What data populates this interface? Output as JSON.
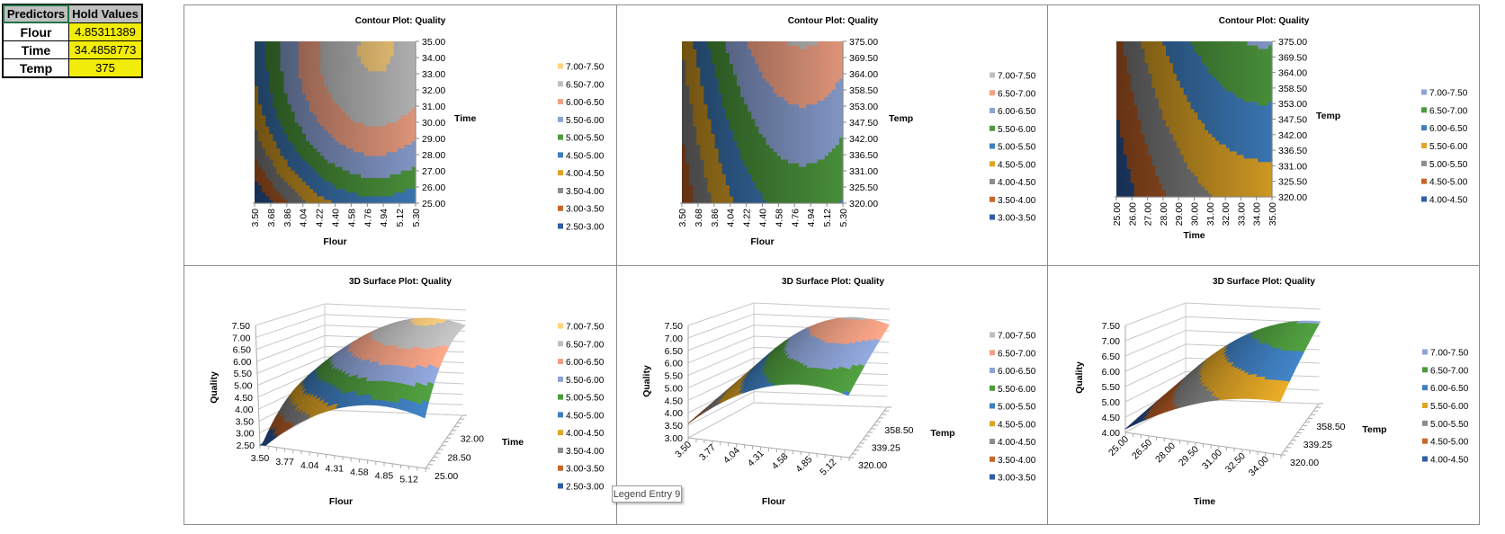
{
  "table": {
    "headers": [
      "Predictors",
      "Hold Values"
    ],
    "rows": [
      {
        "name": "Flour",
        "value": "4.85311389"
      },
      {
        "name": "Time",
        "value": "34.4858773"
      },
      {
        "name": "Temp",
        "value": "375"
      }
    ]
  },
  "tooltip": "Legend Entry 9",
  "colors": {
    "bands": [
      "#2E5EA8",
      "#C8662A",
      "#8C8C8C",
      "#E0A526",
      "#3F7FC0",
      "#4E9A3E",
      "#8DA3D6",
      "#F2A184",
      "#BFBFBF",
      "#FFD27F"
    ],
    "panel_border": "#8C8C8C",
    "hold_value_fill": "#F2EC0A",
    "header_fill": "#C0C0C0"
  },
  "chart_data": [
    {
      "type": "contour",
      "title": "Contour Plot: Quality",
      "xlabel": "Flour",
      "ylabel": "Time",
      "xlim": [
        3.5,
        5.3
      ],
      "ylim": [
        25,
        35
      ],
      "zlim": [
        2.5,
        7.5
      ],
      "held": {
        "Temp": 375
      },
      "x_ticks": [
        "3.50",
        "3.68",
        "3.86",
        "4.04",
        "4.22",
        "4.40",
        "4.58",
        "4.76",
        "4.94",
        "5.12",
        "5.30"
      ],
      "y_ticks": [
        "25.00",
        "26.00",
        "27.00",
        "28.00",
        "29.00",
        "30.00",
        "31.00",
        "32.00",
        "33.00",
        "34.00",
        "35.00"
      ],
      "legend": [
        "7.00-7.50",
        "6.50-7.00",
        "6.00-6.50",
        "5.50-6.00",
        "5.00-5.50",
        "4.50-5.00",
        "4.00-4.50",
        "3.50-4.00",
        "3.00-3.50",
        "2.50-3.00"
      ],
      "legend_position": "right"
    },
    {
      "type": "contour",
      "title": "Contour Plot: Quality",
      "xlabel": "Flour",
      "ylabel": "Temp",
      "xlim": [
        3.5,
        5.3
      ],
      "ylim": [
        320,
        375
      ],
      "zlim": [
        3.0,
        7.5
      ],
      "held": {
        "Time": 34.4858773
      },
      "x_ticks": [
        "3.50",
        "3.68",
        "3.86",
        "4.04",
        "4.22",
        "4.40",
        "4.58",
        "4.76",
        "4.94",
        "5.12",
        "5.30"
      ],
      "y_ticks": [
        "320.00",
        "325.50",
        "331.00",
        "336.50",
        "342.00",
        "347.50",
        "353.00",
        "358.50",
        "364.00",
        "369.50",
        "375.00"
      ],
      "legend": [
        "7.00-7.50",
        "6.50-7.00",
        "6.00-6.50",
        "5.50-6.00",
        "5.00-5.50",
        "4.50-5.00",
        "4.00-4.50",
        "3.50-4.00",
        "3.00-3.50"
      ],
      "legend_position": "right"
    },
    {
      "type": "contour",
      "title": "Contour Plot: Quality",
      "xlabel": "Time",
      "ylabel": "Temp",
      "xlim": [
        25,
        35
      ],
      "ylim": [
        320,
        375
      ],
      "zlim": [
        4.0,
        7.5
      ],
      "held": {
        "Flour": 4.85311389
      },
      "x_ticks": [
        "25.00",
        "26.00",
        "27.00",
        "28.00",
        "29.00",
        "30.00",
        "31.00",
        "32.00",
        "33.00",
        "34.00",
        "35.00"
      ],
      "y_ticks": [
        "320.00",
        "325.50",
        "331.00",
        "336.50",
        "342.00",
        "347.50",
        "353.00",
        "358.50",
        "364.00",
        "369.50",
        "375.00"
      ],
      "legend": [
        "7.00-7.50",
        "6.50-7.00",
        "6.00-6.50",
        "5.50-6.00",
        "5.00-5.50",
        "4.50-5.00",
        "4.00-4.50"
      ],
      "legend_position": "right"
    },
    {
      "type": "surface",
      "title": "3D Surface Plot: Quality",
      "xlabel": "Flour",
      "depthlabel": "Time",
      "zlabel": "Quality",
      "xlim": [
        3.5,
        5.3
      ],
      "depthlim": [
        25,
        35
      ],
      "zlim": [
        2.5,
        7.5
      ],
      "held": {
        "Temp": 375
      },
      "x_ticks": [
        "3.50",
        "3.77",
        "4.04",
        "4.31",
        "4.58",
        "4.85",
        "5.12"
      ],
      "depth_ticks": [
        "25.00",
        "28.50",
        "32.00"
      ],
      "z_ticks": [
        "2.50",
        "3.00",
        "3.50",
        "4.00",
        "4.50",
        "5.00",
        "5.50",
        "6.00",
        "6.50",
        "7.00",
        "7.50"
      ],
      "legend": [
        "7.00-7.50",
        "6.50-7.00",
        "6.00-6.50",
        "5.50-6.00",
        "5.00-5.50",
        "4.50-5.00",
        "4.00-4.50",
        "3.50-4.00",
        "3.00-3.50",
        "2.50-3.00"
      ],
      "legend_position": "right"
    },
    {
      "type": "surface",
      "title": "3D Surface Plot: Quality",
      "xlabel": "Flour",
      "depthlabel": "Temp",
      "zlabel": "Quality",
      "xlim": [
        3.5,
        5.3
      ],
      "depthlim": [
        320,
        375
      ],
      "zlim": [
        3.0,
        7.5
      ],
      "held": {
        "Time": 34.4858773
      },
      "x_ticks": [
        "3.50",
        "3.77",
        "4.04",
        "4.31",
        "4.58",
        "4.85",
        "5.12"
      ],
      "depth_ticks": [
        "320.00",
        "339.25",
        "358.50"
      ],
      "z_ticks": [
        "3.00",
        "3.50",
        "4.00",
        "4.50",
        "5.00",
        "5.50",
        "6.00",
        "6.50",
        "7.00",
        "7.50"
      ],
      "legend": [
        "7.00-7.50",
        "6.50-7.00",
        "6.00-6.50",
        "5.50-6.00",
        "5.00-5.50",
        "4.50-5.00",
        "4.00-4.50",
        "3.50-4.00",
        "3.00-3.50"
      ],
      "legend_position": "right"
    },
    {
      "type": "surface",
      "title": "3D Surface Plot: Quality",
      "xlabel": "Time",
      "depthlabel": "Temp",
      "zlabel": "Quality",
      "xlim": [
        25,
        35
      ],
      "depthlim": [
        320,
        375
      ],
      "zlim": [
        4.0,
        7.5
      ],
      "held": {
        "Flour": 4.85311389
      },
      "x_ticks": [
        "25.00",
        "26.50",
        "28.00",
        "29.50",
        "31.00",
        "32.50",
        "34.00"
      ],
      "depth_ticks": [
        "320.00",
        "339.25",
        "358.50"
      ],
      "z_ticks": [
        "4.00",
        "4.50",
        "5.00",
        "5.50",
        "6.00",
        "6.50",
        "7.00",
        "7.50"
      ],
      "legend": [
        "7.00-7.50",
        "6.50-7.00",
        "6.00-6.50",
        "5.50-6.00",
        "5.00-5.50",
        "4.50-5.00",
        "4.00-4.50"
      ],
      "legend_position": "right"
    }
  ]
}
